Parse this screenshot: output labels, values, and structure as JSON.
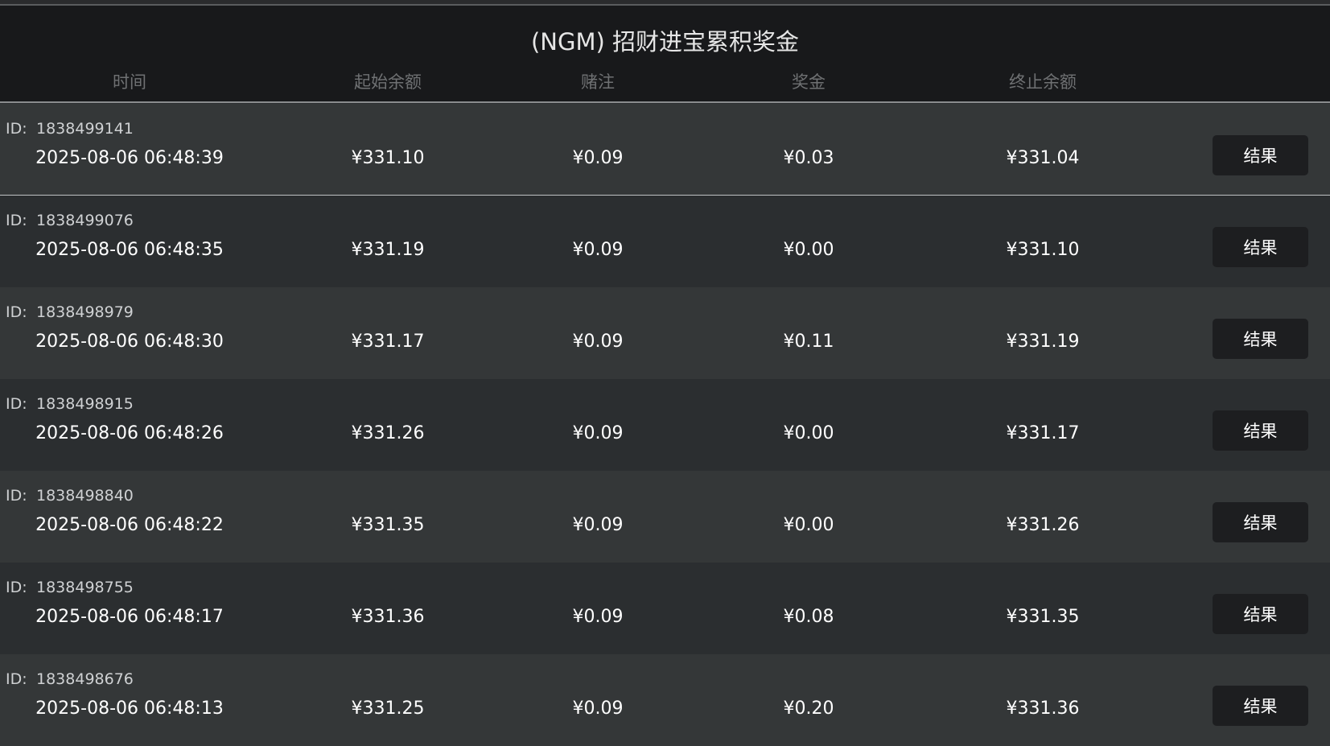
{
  "header": {
    "title": "(NGM) 招财进宝累积奖金",
    "columns": [
      "时间",
      "起始余额",
      "赌注",
      "奖金",
      "终止余额"
    ]
  },
  "table": {
    "rows": [
      {
        "id_label": "ID:",
        "id": "1838499141",
        "time": "2025-08-06 06:48:39",
        "start": "¥331.10",
        "bet": "¥0.09",
        "prize": "¥0.03",
        "end": "¥331.04",
        "button": "结果"
      },
      {
        "id_label": "ID:",
        "id": "1838499076",
        "time": "2025-08-06 06:48:35",
        "start": "¥331.19",
        "bet": "¥0.09",
        "prize": "¥0.00",
        "end": "¥331.10",
        "button": "结果"
      },
      {
        "id_label": "ID:",
        "id": "1838498979",
        "time": "2025-08-06 06:48:30",
        "start": "¥331.17",
        "bet": "¥0.09",
        "prize": "¥0.11",
        "end": "¥331.19",
        "button": "结果"
      },
      {
        "id_label": "ID:",
        "id": "1838498915",
        "time": "2025-08-06 06:48:26",
        "start": "¥331.26",
        "bet": "¥0.09",
        "prize": "¥0.00",
        "end": "¥331.17",
        "button": "结果"
      },
      {
        "id_label": "ID:",
        "id": "1838498840",
        "time": "2025-08-06 06:48:22",
        "start": "¥331.35",
        "bet": "¥0.09",
        "prize": "¥0.00",
        "end": "¥331.26",
        "button": "结果"
      },
      {
        "id_label": "ID:",
        "id": "1838498755",
        "time": "2025-08-06 06:48:17",
        "start": "¥331.36",
        "bet": "¥0.09",
        "prize": "¥0.08",
        "end": "¥331.35",
        "button": "结果"
      },
      {
        "id_label": "ID:",
        "id": "1838498676",
        "time": "2025-08-06 06:48:13",
        "start": "¥331.25",
        "bet": "¥0.09",
        "prize": "¥0.20",
        "end": "¥331.36",
        "button": "结果"
      }
    ]
  }
}
